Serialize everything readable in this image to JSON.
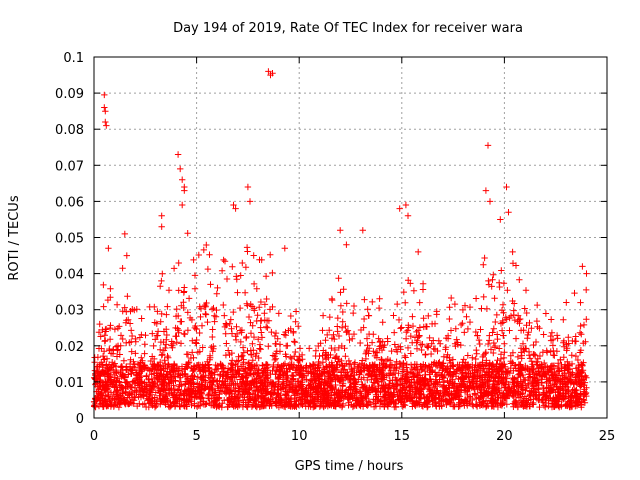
{
  "chart_data": {
    "type": "scatter",
    "title": "Day 194 of 2019, Rate Of TEC Index for receiver wara",
    "xlabel": "GPS time / hours",
    "ylabel": "ROTI / TECUs",
    "xlim": [
      0,
      25
    ],
    "ylim": [
      0,
      0.1
    ],
    "x_ticks": [
      0,
      5,
      10,
      15,
      20,
      25
    ],
    "x_tick_labels": [
      "0",
      "5",
      "10",
      "15",
      "20",
      "25"
    ],
    "y_ticks": [
      0,
      0.01,
      0.02,
      0.03,
      0.04,
      0.05,
      0.06,
      0.07,
      0.08,
      0.09,
      0.1
    ],
    "y_tick_labels": [
      "0",
      "0.01",
      "0.02",
      "0.03",
      "0.04",
      "0.05",
      "0.06",
      "0.07",
      "0.08",
      "0.09",
      "0.1"
    ],
    "grid": true,
    "marker": "+",
    "color": "#ff0000",
    "series": [
      {
        "name": "ROTI",
        "note": "dense scatter; representative points read from the plot",
        "points": [
          [
            0.5,
            0.0895
          ],
          [
            0.5,
            0.086
          ],
          [
            0.55,
            0.085
          ],
          [
            0.55,
            0.082
          ],
          [
            0.6,
            0.081
          ],
          [
            0.7,
            0.047
          ],
          [
            1.5,
            0.051
          ],
          [
            1.6,
            0.045
          ],
          [
            3.3,
            0.056
          ],
          [
            3.3,
            0.053
          ],
          [
            4.1,
            0.073
          ],
          [
            4.2,
            0.069
          ],
          [
            4.3,
            0.066
          ],
          [
            4.4,
            0.064
          ],
          [
            4.4,
            0.063
          ],
          [
            4.3,
            0.059
          ],
          [
            6.8,
            0.059
          ],
          [
            6.9,
            0.058
          ],
          [
            7.5,
            0.064
          ],
          [
            7.6,
            0.06
          ],
          [
            8.5,
            0.096
          ],
          [
            8.6,
            0.095
          ],
          [
            8.7,
            0.0955
          ],
          [
            9.3,
            0.047
          ],
          [
            12.0,
            0.052
          ],
          [
            12.3,
            0.048
          ],
          [
            13.1,
            0.052
          ],
          [
            14.9,
            0.058
          ],
          [
            15.2,
            0.059
          ],
          [
            15.3,
            0.056
          ],
          [
            15.8,
            0.046
          ],
          [
            19.1,
            0.063
          ],
          [
            19.2,
            0.0755
          ],
          [
            19.3,
            0.06
          ],
          [
            19.8,
            0.055
          ],
          [
            20.1,
            0.064
          ],
          [
            20.2,
            0.057
          ],
          [
            20.4,
            0.046
          ],
          [
            23.8,
            0.042
          ],
          [
            24.0,
            0.04
          ]
        ],
        "baseline_band": [
          0.003,
          0.015
        ],
        "dense_envelope": [
          [
            0,
            0.027
          ],
          [
            0.5,
            0.038
          ],
          [
            1,
            0.035
          ],
          [
            1.5,
            0.045
          ],
          [
            2,
            0.032
          ],
          [
            2.5,
            0.034
          ],
          [
            3,
            0.038
          ],
          [
            3.5,
            0.042
          ],
          [
            4,
            0.048
          ],
          [
            4.5,
            0.052
          ],
          [
            5,
            0.046
          ],
          [
            5.5,
            0.049
          ],
          [
            6,
            0.043
          ],
          [
            6.5,
            0.048
          ],
          [
            7,
            0.041
          ],
          [
            7.5,
            0.048
          ],
          [
            8,
            0.044
          ],
          [
            8.5,
            0.047
          ],
          [
            9,
            0.04
          ],
          [
            9.5,
            0.038
          ],
          [
            10,
            0.028
          ],
          [
            10.5,
            0.024
          ],
          [
            11,
            0.03
          ],
          [
            11.5,
            0.033
          ],
          [
            12,
            0.044
          ],
          [
            12.5,
            0.04
          ],
          [
            13,
            0.038
          ],
          [
            13.5,
            0.033
          ],
          [
            14,
            0.035
          ],
          [
            14.5,
            0.036
          ],
          [
            15,
            0.04
          ],
          [
            15.5,
            0.038
          ],
          [
            16,
            0.042
          ],
          [
            16.5,
            0.034
          ],
          [
            17,
            0.033
          ],
          [
            17.5,
            0.036
          ],
          [
            18,
            0.038
          ],
          [
            18.5,
            0.04
          ],
          [
            19,
            0.046
          ],
          [
            19.5,
            0.042
          ],
          [
            20,
            0.045
          ],
          [
            20.5,
            0.043
          ],
          [
            21,
            0.04
          ],
          [
            21.5,
            0.037
          ],
          [
            22,
            0.036
          ],
          [
            22.5,
            0.034
          ],
          [
            23,
            0.032
          ],
          [
            23.5,
            0.036
          ],
          [
            24,
            0.04
          ]
        ]
      }
    ]
  }
}
